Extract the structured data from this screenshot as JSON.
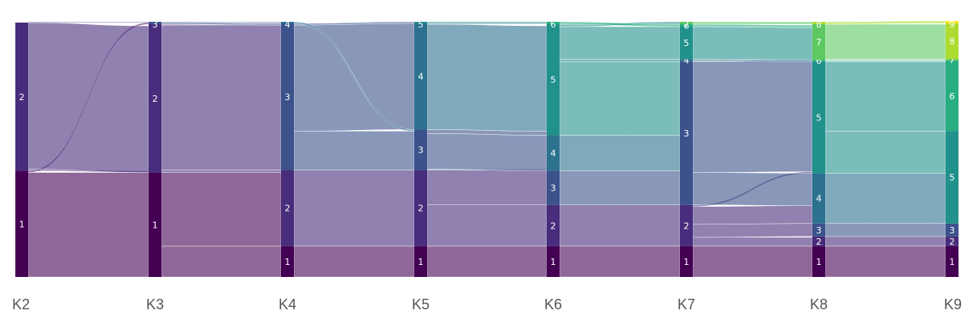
{
  "chart_data": {
    "type": "sankey",
    "title": "",
    "stages": [
      "K2",
      "K3",
      "K4",
      "K5",
      "K6",
      "K7",
      "K8",
      "K9"
    ],
    "palette": {
      "1": "#440154",
      "2": "#472d7b",
      "3": "#3b528b",
      "4": "#2c728e",
      "5": "#21918c",
      "6": "#28ae80",
      "7": "#5ec962",
      "8": "#addc30",
      "9": "#fde725"
    },
    "nodes": [
      [
        {
          "id": "1",
          "size": 131
        },
        {
          "id": "2",
          "size": 183
        }
      ],
      [
        {
          "id": "1",
          "size": 129
        },
        {
          "id": "2",
          "size": 183
        },
        {
          "id": "3",
          "size": 3
        }
      ],
      [
        {
          "id": "1",
          "size": 38
        },
        {
          "id": "2",
          "size": 94
        },
        {
          "id": "3",
          "size": 181
        },
        {
          "id": "4",
          "size": 2
        }
      ],
      [
        {
          "id": "1",
          "size": 38
        },
        {
          "id": "2",
          "size": 94
        },
        {
          "id": "3",
          "size": 50
        },
        {
          "id": "4",
          "size": 131
        },
        {
          "id": "5",
          "size": 2
        }
      ],
      [
        {
          "id": "1",
          "size": 38
        },
        {
          "id": "2",
          "size": 51
        },
        {
          "id": "3",
          "size": 42
        },
        {
          "id": "4",
          "size": 44
        },
        {
          "id": "5",
          "size": 137
        },
        {
          "id": "6",
          "size": 3
        }
      ],
      [
        {
          "id": "1",
          "size": 38
        },
        {
          "id": "2",
          "size": 51
        },
        {
          "id": "3",
          "size": 177
        },
        {
          "id": "4",
          "size": 3
        },
        {
          "id": "5",
          "size": 40
        },
        {
          "id": "6",
          "size": 3
        },
        {
          "id": "7",
          "size": 3
        }
      ],
      [
        {
          "id": "1",
          "size": 38
        },
        {
          "id": "2",
          "size": 12
        },
        {
          "id": "3",
          "size": 16
        },
        {
          "id": "4",
          "size": 62
        },
        {
          "id": "5",
          "size": 138
        },
        {
          "id": "6",
          "size": 2
        },
        {
          "id": "7",
          "size": 44
        },
        {
          "id": "8",
          "size": 3
        }
      ],
      [
        {
          "id": "1",
          "size": 38
        },
        {
          "id": "2",
          "size": 12
        },
        {
          "id": "3",
          "size": 16
        },
        {
          "id": "5",
          "size": 114
        },
        {
          "id": "6",
          "size": 87
        },
        {
          "id": "7",
          "size": 2
        },
        {
          "id": "8",
          "size": 44
        },
        {
          "id": "9",
          "size": 3
        }
      ]
    ],
    "links": [
      [
        [
          "1",
          "1",
          129
        ],
        [
          "2",
          "1",
          2
        ],
        [
          "2",
          "2",
          181
        ],
        [
          "2",
          "3",
          1
        ],
        [
          "1",
          "3",
          2
        ]
      ],
      [
        [
          "1",
          "1",
          38
        ],
        [
          "1",
          "2",
          91
        ],
        [
          "2",
          "2",
          3
        ],
        [
          "2",
          "3",
          179
        ],
        [
          "2",
          "4",
          1
        ],
        [
          "3",
          "3",
          2
        ],
        [
          "3",
          "4",
          1
        ]
      ],
      [
        [
          "1",
          "1",
          38
        ],
        [
          "2",
          "2",
          94
        ],
        [
          "3",
          "3",
          48
        ],
        [
          "3",
          "4",
          131
        ],
        [
          "3",
          "5",
          2
        ],
        [
          "4",
          "3",
          2
        ]
      ],
      [
        [
          "1",
          "1",
          38
        ],
        [
          "2",
          "2",
          51
        ],
        [
          "2",
          "3",
          43
        ],
        [
          "3",
          "3",
          1
        ],
        [
          "3",
          "4",
          44
        ],
        [
          "3",
          "5",
          5
        ],
        [
          "4",
          "5",
          130
        ],
        [
          "4",
          "6",
          1
        ],
        [
          "5",
          "6",
          2
        ]
      ],
      [
        [
          "1",
          "1",
          38
        ],
        [
          "2",
          "2",
          51
        ],
        [
          "3",
          "3",
          42
        ],
        [
          "4",
          "3",
          44
        ],
        [
          "5",
          "3",
          91
        ],
        [
          "5",
          "5",
          40
        ],
        [
          "5",
          "4",
          3
        ],
        [
          "5",
          "7",
          3
        ],
        [
          "6",
          "6",
          3
        ]
      ],
      [
        [
          "1",
          "1",
          38
        ],
        [
          "2",
          "2",
          11
        ],
        [
          "2",
          "3",
          16
        ],
        [
          "2",
          "4",
          22
        ],
        [
          "2",
          "5",
          2
        ],
        [
          "3",
          "4",
          40
        ],
        [
          "3",
          "5",
          137
        ],
        [
          "4",
          "5",
          1
        ],
        [
          "4",
          "6",
          2
        ],
        [
          "5",
          "7",
          40
        ],
        [
          "6",
          "7",
          3
        ],
        [
          "7",
          "8",
          3
        ]
      ],
      [
        [
          "1",
          "1",
          38
        ],
        [
          "2",
          "2",
          12
        ],
        [
          "3",
          "3",
          16
        ],
        [
          "4",
          "5",
          62
        ],
        [
          "5",
          "5",
          52
        ],
        [
          "5",
          "6",
          86
        ],
        [
          "6",
          "6",
          1
        ],
        [
          "6",
          "7",
          1
        ],
        [
          "7",
          "7",
          1
        ],
        [
          "7",
          "8",
          43
        ],
        [
          "8",
          "9",
          3
        ]
      ]
    ]
  }
}
